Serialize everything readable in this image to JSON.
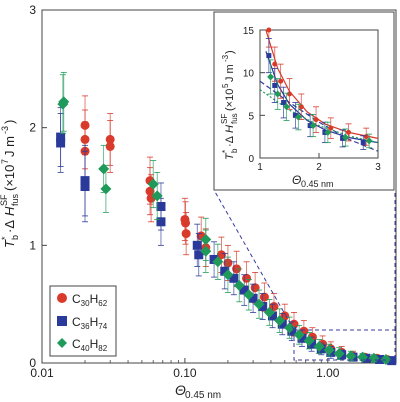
{
  "chart_data": [
    {
      "type": "scatter",
      "title": "",
      "xlabel": "Θ0.45 nm",
      "ylabel": "T*b·ΔHSFfus (×10^7 J m^-3)",
      "xscale": "log",
      "xlim": [
        0.01,
        3
      ],
      "ylim": [
        0,
        3
      ],
      "xticks": [
        0.01,
        0.1,
        1
      ],
      "xtick_labels": [
        "0.01",
        "0.10",
        "1.00"
      ],
      "yticks": [
        0,
        1,
        2,
        3
      ],
      "ytick_labels": [
        "0",
        "1",
        "2",
        "3"
      ],
      "grid": false,
      "legend_position": "bottom-left",
      "series": [
        {
          "name": "C30H62",
          "color": "#d93a2b",
          "marker": "circle",
          "points": [
            {
              "x": 0.02,
              "y": 2.02,
              "err": 0.25
            },
            {
              "x": 0.02,
              "y": 1.9,
              "err": 0.25
            },
            {
              "x": 0.02,
              "y": 1.8,
              "err": 0.25
            },
            {
              "x": 0.03,
              "y": 1.9,
              "err": 0.22
            },
            {
              "x": 0.03,
              "y": 1.84,
              "err": 0.22
            },
            {
              "x": 0.057,
              "y": 1.55,
              "err": 0.2
            },
            {
              "x": 0.057,
              "y": 1.46,
              "err": 0.2
            },
            {
              "x": 0.058,
              "y": 1.4,
              "err": 0.2
            },
            {
              "x": 0.1,
              "y": 1.22,
              "err": 0.18
            },
            {
              "x": 0.101,
              "y": 1.19,
              "err": 0.18
            },
            {
              "x": 0.102,
              "y": 1.1,
              "err": 0.18
            },
            {
              "x": 0.13,
              "y": 1.08,
              "err": 0.16
            },
            {
              "x": 0.14,
              "y": 0.98,
              "err": 0.16
            },
            {
              "x": 0.18,
              "y": 0.92,
              "err": 0.15
            },
            {
              "x": 0.2,
              "y": 0.85,
              "err": 0.15
            },
            {
              "x": 0.23,
              "y": 0.8,
              "err": 0.15
            },
            {
              "x": 0.27,
              "y": 0.72,
              "err": 0.14
            },
            {
              "x": 0.31,
              "y": 0.64,
              "err": 0.13
            },
            {
              "x": 0.36,
              "y": 0.56,
              "err": 0.12
            },
            {
              "x": 0.42,
              "y": 0.48,
              "err": 0.11
            },
            {
              "x": 0.5,
              "y": 0.4,
              "err": 0.1
            },
            {
              "x": 0.58,
              "y": 0.33,
              "err": 0.1
            },
            {
              "x": 0.68,
              "y": 0.27,
              "err": 0.09
            },
            {
              "x": 0.78,
              "y": 0.22,
              "err": 0.08
            },
            {
              "x": 0.92,
              "y": 0.16,
              "err": 0.07
            },
            {
              "x": 1.05,
              "y": 0.12,
              "err": 0.06
            },
            {
              "x": 1.25,
              "y": 0.09,
              "err": 0.05
            },
            {
              "x": 1.5,
              "y": 0.06,
              "err": 0.04
            },
            {
              "x": 1.8,
              "y": 0.05,
              "err": 0.03
            },
            {
              "x": 2.2,
              "y": 0.04,
              "err": 0.03
            },
            {
              "x": 2.6,
              "y": 0.03,
              "err": 0.02
            }
          ]
        },
        {
          "name": "C36H74",
          "color": "#2a3a9a",
          "marker": "square",
          "points": [
            {
              "x": 0.0135,
              "y": 1.92,
              "err": 0.25
            },
            {
              "x": 0.0135,
              "y": 1.87,
              "err": 0.25
            },
            {
              "x": 0.02,
              "y": 1.55,
              "err": 0.3
            },
            {
              "x": 0.02,
              "y": 1.5,
              "err": 0.3
            },
            {
              "x": 0.068,
              "y": 1.33,
              "err": 0.2
            },
            {
              "x": 0.068,
              "y": 1.2,
              "err": 0.2
            },
            {
              "x": 0.122,
              "y": 1.0,
              "err": 0.18
            },
            {
              "x": 0.125,
              "y": 0.92,
              "err": 0.18
            },
            {
              "x": 0.16,
              "y": 0.88,
              "err": 0.15
            },
            {
              "x": 0.19,
              "y": 0.78,
              "err": 0.15
            },
            {
              "x": 0.22,
              "y": 0.72,
              "err": 0.14
            },
            {
              "x": 0.26,
              "y": 0.62,
              "err": 0.13
            },
            {
              "x": 0.3,
              "y": 0.55,
              "err": 0.12
            },
            {
              "x": 0.35,
              "y": 0.48,
              "err": 0.11
            },
            {
              "x": 0.41,
              "y": 0.4,
              "err": 0.1
            },
            {
              "x": 0.48,
              "y": 0.33,
              "err": 0.09
            },
            {
              "x": 0.56,
              "y": 0.27,
              "err": 0.08
            },
            {
              "x": 0.66,
              "y": 0.21,
              "err": 0.07
            },
            {
              "x": 0.77,
              "y": 0.16,
              "err": 0.06
            },
            {
              "x": 0.9,
              "y": 0.12,
              "err": 0.05
            },
            {
              "x": 1.05,
              "y": 0.09,
              "err": 0.05
            },
            {
              "x": 1.25,
              "y": 0.07,
              "err": 0.04
            },
            {
              "x": 1.5,
              "y": 0.05,
              "err": 0.03
            },
            {
              "x": 1.85,
              "y": 0.04,
              "err": 0.03
            },
            {
              "x": 2.3,
              "y": 0.03,
              "err": 0.02
            },
            {
              "x": 2.8,
              "y": 0.02,
              "err": 0.02
            }
          ]
        },
        {
          "name": "C40H82",
          "color": "#1f9a5a",
          "marker": "diamond",
          "points": [
            {
              "x": 0.0142,
              "y": 2.22,
              "err": 0.25
            },
            {
              "x": 0.014,
              "y": 2.2,
              "err": 0.25
            },
            {
              "x": 0.027,
              "y": 1.65,
              "err": 0.2
            },
            {
              "x": 0.028,
              "y": 1.48,
              "err": 0.2
            },
            {
              "x": 0.06,
              "y": 1.52,
              "err": 0.2
            },
            {
              "x": 0.064,
              "y": 1.42,
              "err": 0.2
            },
            {
              "x": 0.14,
              "y": 1.05,
              "err": 0.18
            },
            {
              "x": 0.14,
              "y": 0.95,
              "err": 0.18
            },
            {
              "x": 0.17,
              "y": 0.86,
              "err": 0.15
            },
            {
              "x": 0.2,
              "y": 0.75,
              "err": 0.15
            },
            {
              "x": 0.24,
              "y": 0.66,
              "err": 0.14
            },
            {
              "x": 0.28,
              "y": 0.58,
              "err": 0.13
            },
            {
              "x": 0.33,
              "y": 0.5,
              "err": 0.12
            },
            {
              "x": 0.39,
              "y": 0.43,
              "err": 0.11
            },
            {
              "x": 0.46,
              "y": 0.36,
              "err": 0.1
            },
            {
              "x": 0.54,
              "y": 0.3,
              "err": 0.09
            },
            {
              "x": 0.63,
              "y": 0.24,
              "err": 0.08
            },
            {
              "x": 0.74,
              "y": 0.19,
              "err": 0.07
            },
            {
              "x": 0.87,
              "y": 0.14,
              "err": 0.06
            },
            {
              "x": 1.02,
              "y": 0.11,
              "err": 0.05
            },
            {
              "x": 1.2,
              "y": 0.08,
              "err": 0.05
            },
            {
              "x": 1.45,
              "y": 0.06,
              "err": 0.04
            },
            {
              "x": 1.75,
              "y": 0.05,
              "err": 0.03
            },
            {
              "x": 2.1,
              "y": 0.04,
              "err": 0.03
            },
            {
              "x": 2.55,
              "y": 0.03,
              "err": 0.02
            }
          ]
        }
      ]
    },
    {
      "type": "scatter",
      "title": "",
      "xlabel": "Θ0.45 nm",
      "ylabel": "T*b·ΔHSFfus (×10^5 J m^-3)",
      "xscale": "linear",
      "xlim": [
        1,
        3
      ],
      "ylim": [
        0,
        15
      ],
      "xticks": [
        1,
        2,
        3
      ],
      "xtick_labels": [
        "1",
        "2",
        "3"
      ],
      "yticks": [
        0,
        5,
        10,
        15
      ],
      "ytick_labels": [
        "0",
        "5",
        "10",
        "15"
      ],
      "grid": false,
      "series": [
        {
          "name": "C30H62",
          "color": "#d93a2b",
          "marker": "circle",
          "points": [
            {
              "x": 1.15,
              "y": 15.0,
              "err": 2.0
            },
            {
              "x": 1.25,
              "y": 11.0,
              "err": 2.0
            },
            {
              "x": 1.35,
              "y": 9.0,
              "err": 2.0
            },
            {
              "x": 1.5,
              "y": 7.5,
              "err": 1.8
            },
            {
              "x": 1.7,
              "y": 6.0,
              "err": 1.5
            },
            {
              "x": 1.95,
              "y": 4.5,
              "err": 1.5
            },
            {
              "x": 2.2,
              "y": 3.5,
              "err": 1.2
            },
            {
              "x": 2.5,
              "y": 3.0,
              "err": 1.0
            },
            {
              "x": 2.8,
              "y": 2.5,
              "err": 1.0
            }
          ]
        },
        {
          "name": "C36H74",
          "color": "#2a3a9a",
          "marker": "square",
          "points": [
            {
              "x": 1.15,
              "y": 12.0,
              "err": 2.0
            },
            {
              "x": 1.25,
              "y": 8.5,
              "err": 2.0
            },
            {
              "x": 1.4,
              "y": 6.5,
              "err": 1.8
            },
            {
              "x": 1.6,
              "y": 5.0,
              "err": 1.5
            },
            {
              "x": 1.85,
              "y": 3.8,
              "err": 1.3
            },
            {
              "x": 2.1,
              "y": 3.0,
              "err": 1.2
            },
            {
              "x": 2.4,
              "y": 2.3,
              "err": 1.0
            },
            {
              "x": 2.75,
              "y": 1.8,
              "err": 0.8
            }
          ]
        },
        {
          "name": "C40H82",
          "color": "#1f9a5a",
          "marker": "diamond",
          "points": [
            {
              "x": 1.18,
              "y": 9.5,
              "err": 2.0
            },
            {
              "x": 1.3,
              "y": 7.5,
              "err": 1.8
            },
            {
              "x": 1.45,
              "y": 6.0,
              "err": 1.6
            },
            {
              "x": 1.65,
              "y": 4.8,
              "err": 1.5
            },
            {
              "x": 1.9,
              "y": 3.8,
              "err": 1.3
            },
            {
              "x": 2.15,
              "y": 3.0,
              "err": 1.2
            },
            {
              "x": 2.45,
              "y": 2.4,
              "err": 1.0
            },
            {
              "x": 2.85,
              "y": 2.0,
              "err": 0.8
            }
          ]
        }
      ],
      "fit_curves": [
        {
          "color": "#d93a2b",
          "style": "solid",
          "x": [
            1.1,
            1.3,
            1.5,
            1.8,
            2.1,
            2.5,
            3.0
          ],
          "y": [
            15.0,
            10.5,
            7.8,
            5.4,
            4.0,
            3.0,
            2.3
          ]
        },
        {
          "color": "#2a3a9a",
          "style": "solid",
          "x": [
            1.1,
            1.3,
            1.5,
            1.8,
            2.1,
            2.5,
            3.0
          ],
          "y": [
            12.5,
            8.6,
            6.3,
            4.4,
            3.3,
            2.4,
            1.8
          ]
        },
        {
          "color": "#2a3a9a",
          "style": "dashed",
          "x": [
            1.0,
            1.5,
            2.0,
            2.5,
            3.0
          ],
          "y": [
            9.0,
            6.5,
            4.2,
            2.2,
            0.8
          ]
        },
        {
          "color": "#1f9a5a",
          "style": "dotted",
          "x": [
            1.0,
            1.5,
            2.0,
            2.5,
            3.0
          ],
          "y": [
            8.0,
            5.6,
            3.8,
            2.6,
            1.8
          ]
        }
      ]
    }
  ]
}
